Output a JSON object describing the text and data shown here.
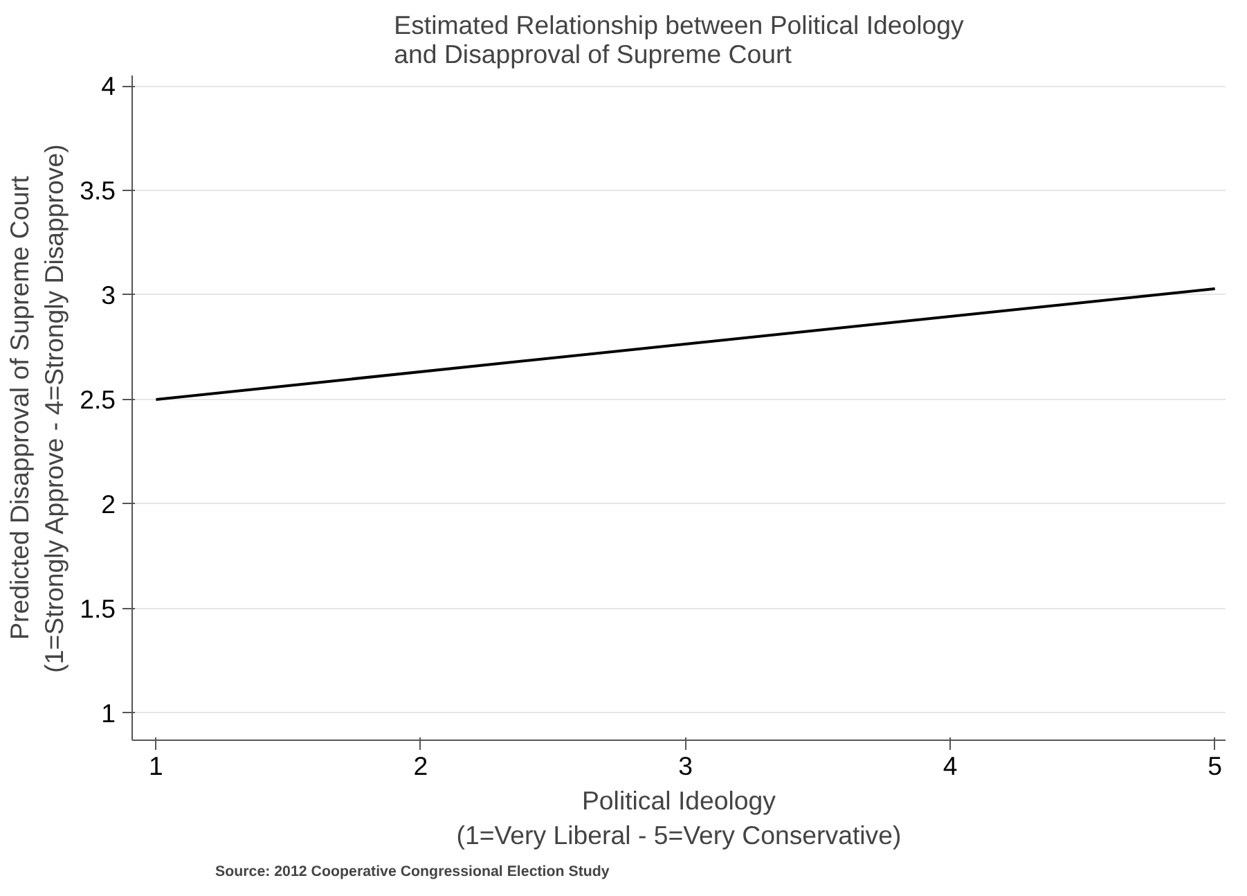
{
  "chart_data": {
    "type": "line",
    "title": "Estimated Relationship between Political Ideology\nand Disapproval of Supreme Court",
    "xlabel": "Political Ideology\n(1=Very Liberal - 5=Very Conservative)",
    "ylabel": "Predicted Disapproval of Supreme Court\n(1=Strongly Approve - 4=Strongly Disapprove)",
    "x": [
      1,
      5
    ],
    "series": [
      {
        "color": "#000000",
        "values": [
          2.5,
          3.03
        ]
      }
    ],
    "xlim": [
      0.91,
      5.04
    ],
    "ylim": [
      0.87,
      4.05
    ],
    "xticks": [
      1,
      2,
      3,
      4,
      5
    ],
    "yticks": [
      1,
      1.5,
      2,
      2.5,
      3,
      3.5,
      4
    ],
    "grid": "y",
    "line_style": "solid",
    "annotations": [
      "Source: 2012 Cooperative Congressional Election Study"
    ]
  }
}
